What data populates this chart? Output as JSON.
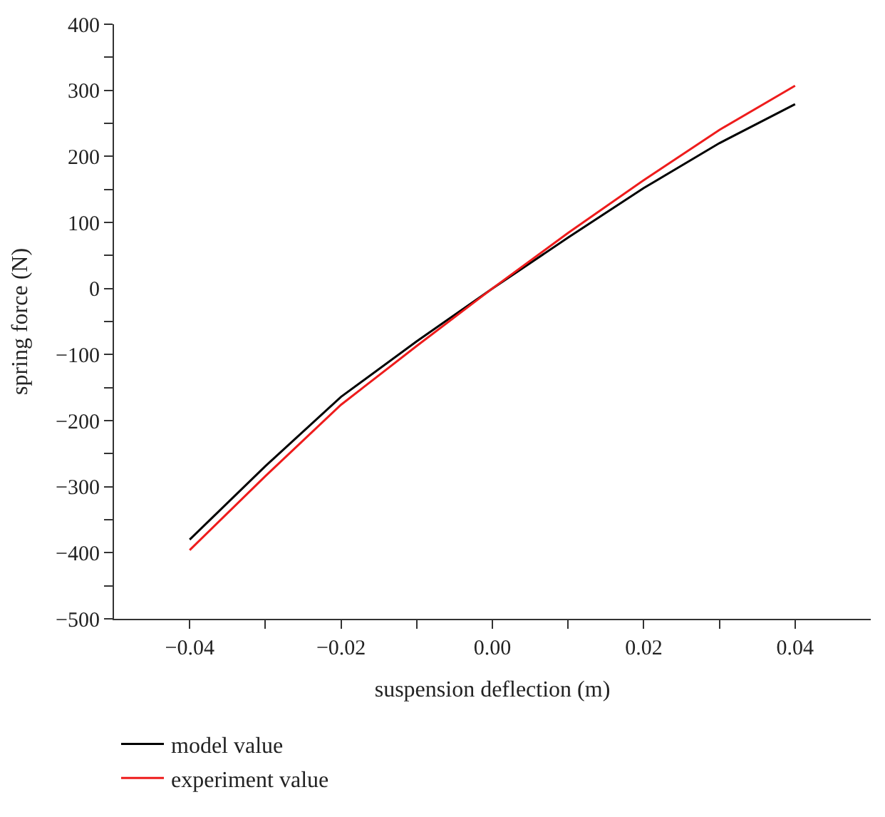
{
  "chart_data": {
    "type": "line",
    "xlabel": "suspension deflection (m)",
    "ylabel": "spring force (N)",
    "x": [
      -0.04,
      -0.03,
      -0.02,
      -0.01,
      0,
      0.01,
      0.02,
      0.03,
      0.04
    ],
    "series": [
      {
        "name": "model value",
        "color": "#000000",
        "values": [
          -380,
          -269,
          -164,
          -80,
          0,
          77,
          152,
          220,
          279
        ]
      },
      {
        "name": "experiment value",
        "color": "#ee1c1c",
        "values": [
          -396,
          -284,
          -176,
          -87,
          0,
          84,
          164,
          240,
          307
        ]
      }
    ],
    "xlim": [
      -0.05,
      0.05
    ],
    "xticks": [
      {
        "value": -0.04,
        "label": "−0.04"
      },
      {
        "value": -0.03,
        "label": null
      },
      {
        "value": -0.02,
        "label": "−0.02"
      },
      {
        "value": -0.01,
        "label": null
      },
      {
        "value": 0,
        "label": "0.00"
      },
      {
        "value": 0.01,
        "label": null
      },
      {
        "value": 0.02,
        "label": "0.02"
      },
      {
        "value": 0.03,
        "label": null
      },
      {
        "value": 0.04,
        "label": "0.04"
      }
    ],
    "ylim": [
      -500,
      400
    ],
    "yticks": [
      {
        "value": -500,
        "label": "−500"
      },
      {
        "value": -450,
        "label": null
      },
      {
        "value": -400,
        "label": "−400"
      },
      {
        "value": -350,
        "label": null
      },
      {
        "value": -300,
        "label": "−300"
      },
      {
        "value": -250,
        "label": null
      },
      {
        "value": -200,
        "label": "−200"
      },
      {
        "value": -150,
        "label": null
      },
      {
        "value": -100,
        "label": "−100"
      },
      {
        "value": -50,
        "label": null
      },
      0,
      {
        "value": 50,
        "label": null
      },
      100,
      {
        "value": 150,
        "label": null
      },
      200,
      {
        "value": 250,
        "label": null
      },
      300,
      {
        "value": 350,
        "label": null
      },
      400
    ],
    "legend": "bottom left",
    "line_style": "solid",
    "marker": "none"
  }
}
